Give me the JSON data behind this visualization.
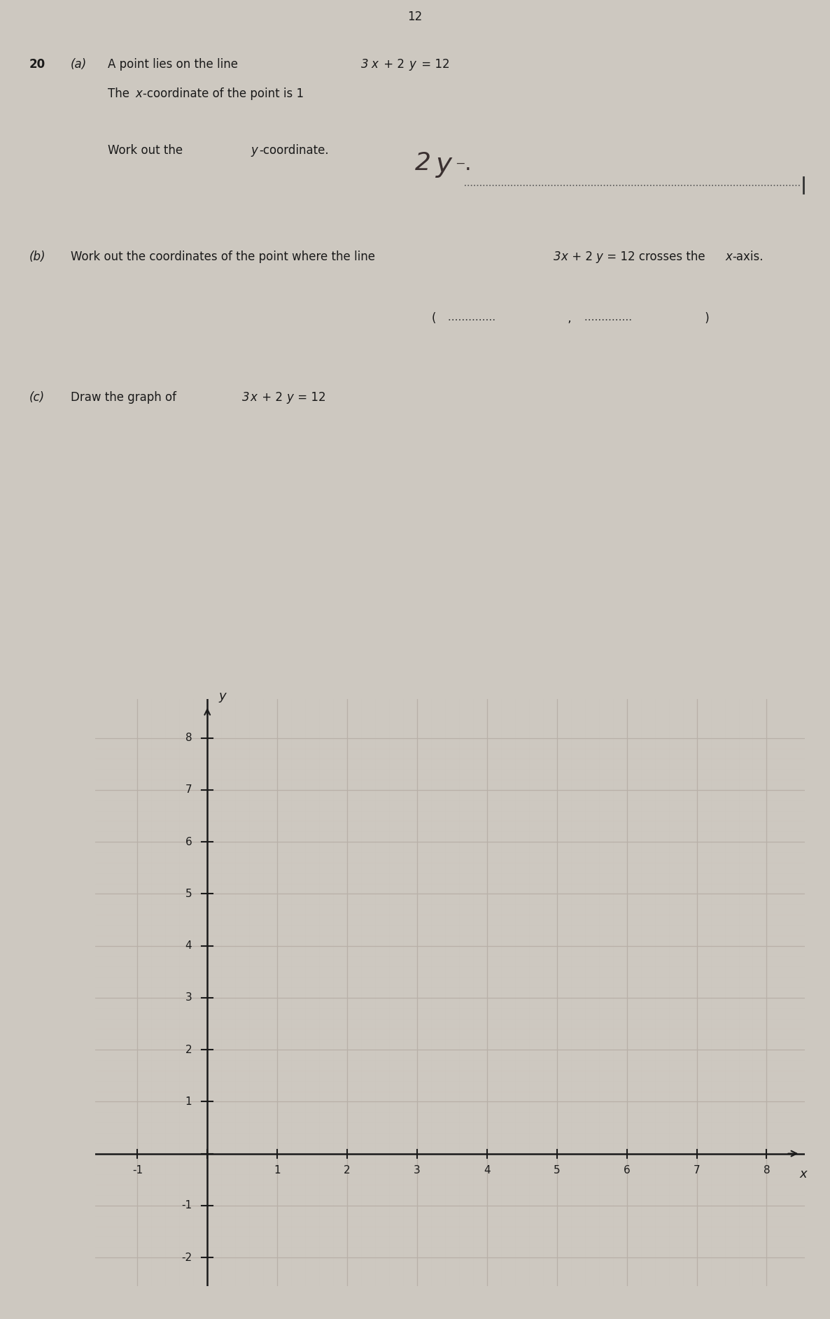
{
  "page_number": "12",
  "bg_color": "#cdc8c0",
  "text_color": "#1a1a1a",
  "grid_color": "#b8b0a8",
  "fine_grid_color": "#ccc6be",
  "axis_color": "#1a1a1a",
  "graph_xlim": [
    -1,
    8
  ],
  "graph_ylim": [
    -2,
    8
  ],
  "graph_xticks": [
    -1,
    0,
    1,
    2,
    3,
    4,
    5,
    6,
    7,
    8
  ],
  "graph_yticks": [
    -2,
    -1,
    0,
    1,
    2,
    3,
    4,
    5,
    6,
    7,
    8
  ],
  "graph_xlabel": "x",
  "graph_ylabel": "y",
  "fig_width": 11.86,
  "fig_height": 18.85
}
